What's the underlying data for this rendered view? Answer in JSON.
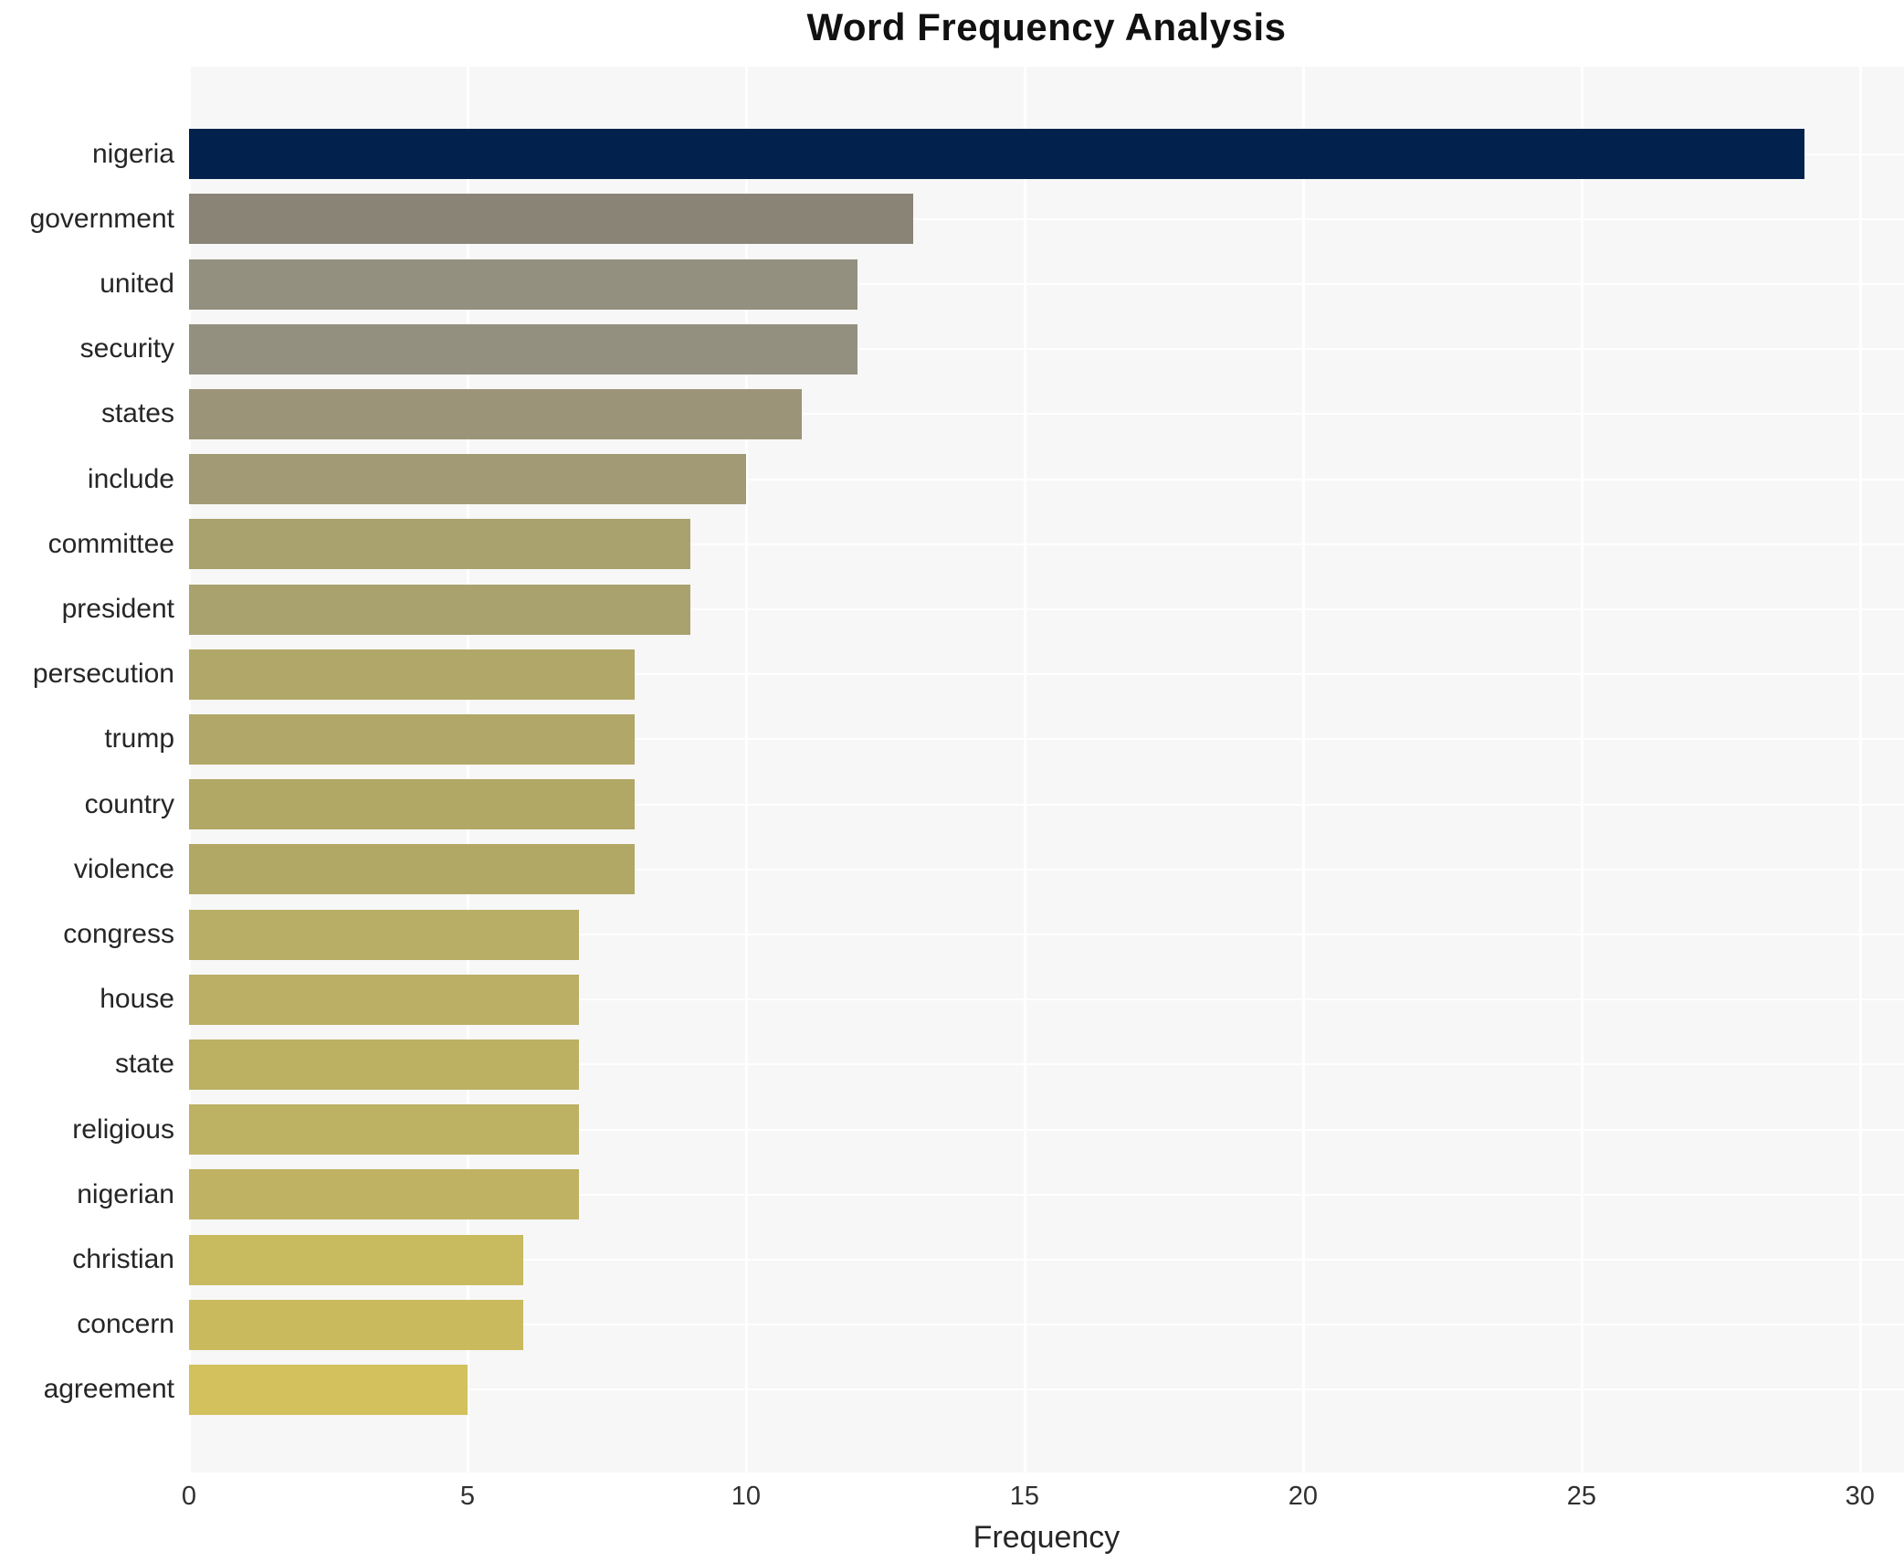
{
  "chart_data": {
    "type": "bar",
    "orientation": "horizontal",
    "title": "Word Frequency Analysis",
    "xlabel": "Frequency",
    "ylabel": "",
    "xlim": [
      0,
      30.79
    ],
    "xticks": [
      0,
      5,
      10,
      15,
      20,
      25,
      30
    ],
    "grid": true,
    "legend": "none",
    "plot_background": "#f7f7f7",
    "gridline_color": "#ffffff",
    "categories": [
      "nigeria",
      "government",
      "united",
      "security",
      "states",
      "include",
      "committee",
      "president",
      "persecution",
      "trump",
      "country",
      "violence",
      "congress",
      "house",
      "state",
      "religious",
      "nigerian",
      "christian",
      "concern",
      "agreement"
    ],
    "values": [
      29,
      13,
      12,
      12,
      11,
      10,
      9,
      9,
      8,
      8,
      8,
      8,
      7,
      7,
      7,
      7,
      7,
      6,
      6,
      5
    ],
    "bar_colors": [
      "#02214C",
      "#898476",
      "#949080",
      "#949080",
      "#9C9478",
      "#A29A74",
      "#A9A16E",
      "#A9A16E",
      "#B0A768",
      "#B0A768",
      "#B2A866",
      "#B2A866",
      "#B9AE65",
      "#BAAF64",
      "#BCB063",
      "#BDB163",
      "#BFB262",
      "#C8BA5E",
      "#C9BB5D",
      "#D2C15C"
    ]
  }
}
